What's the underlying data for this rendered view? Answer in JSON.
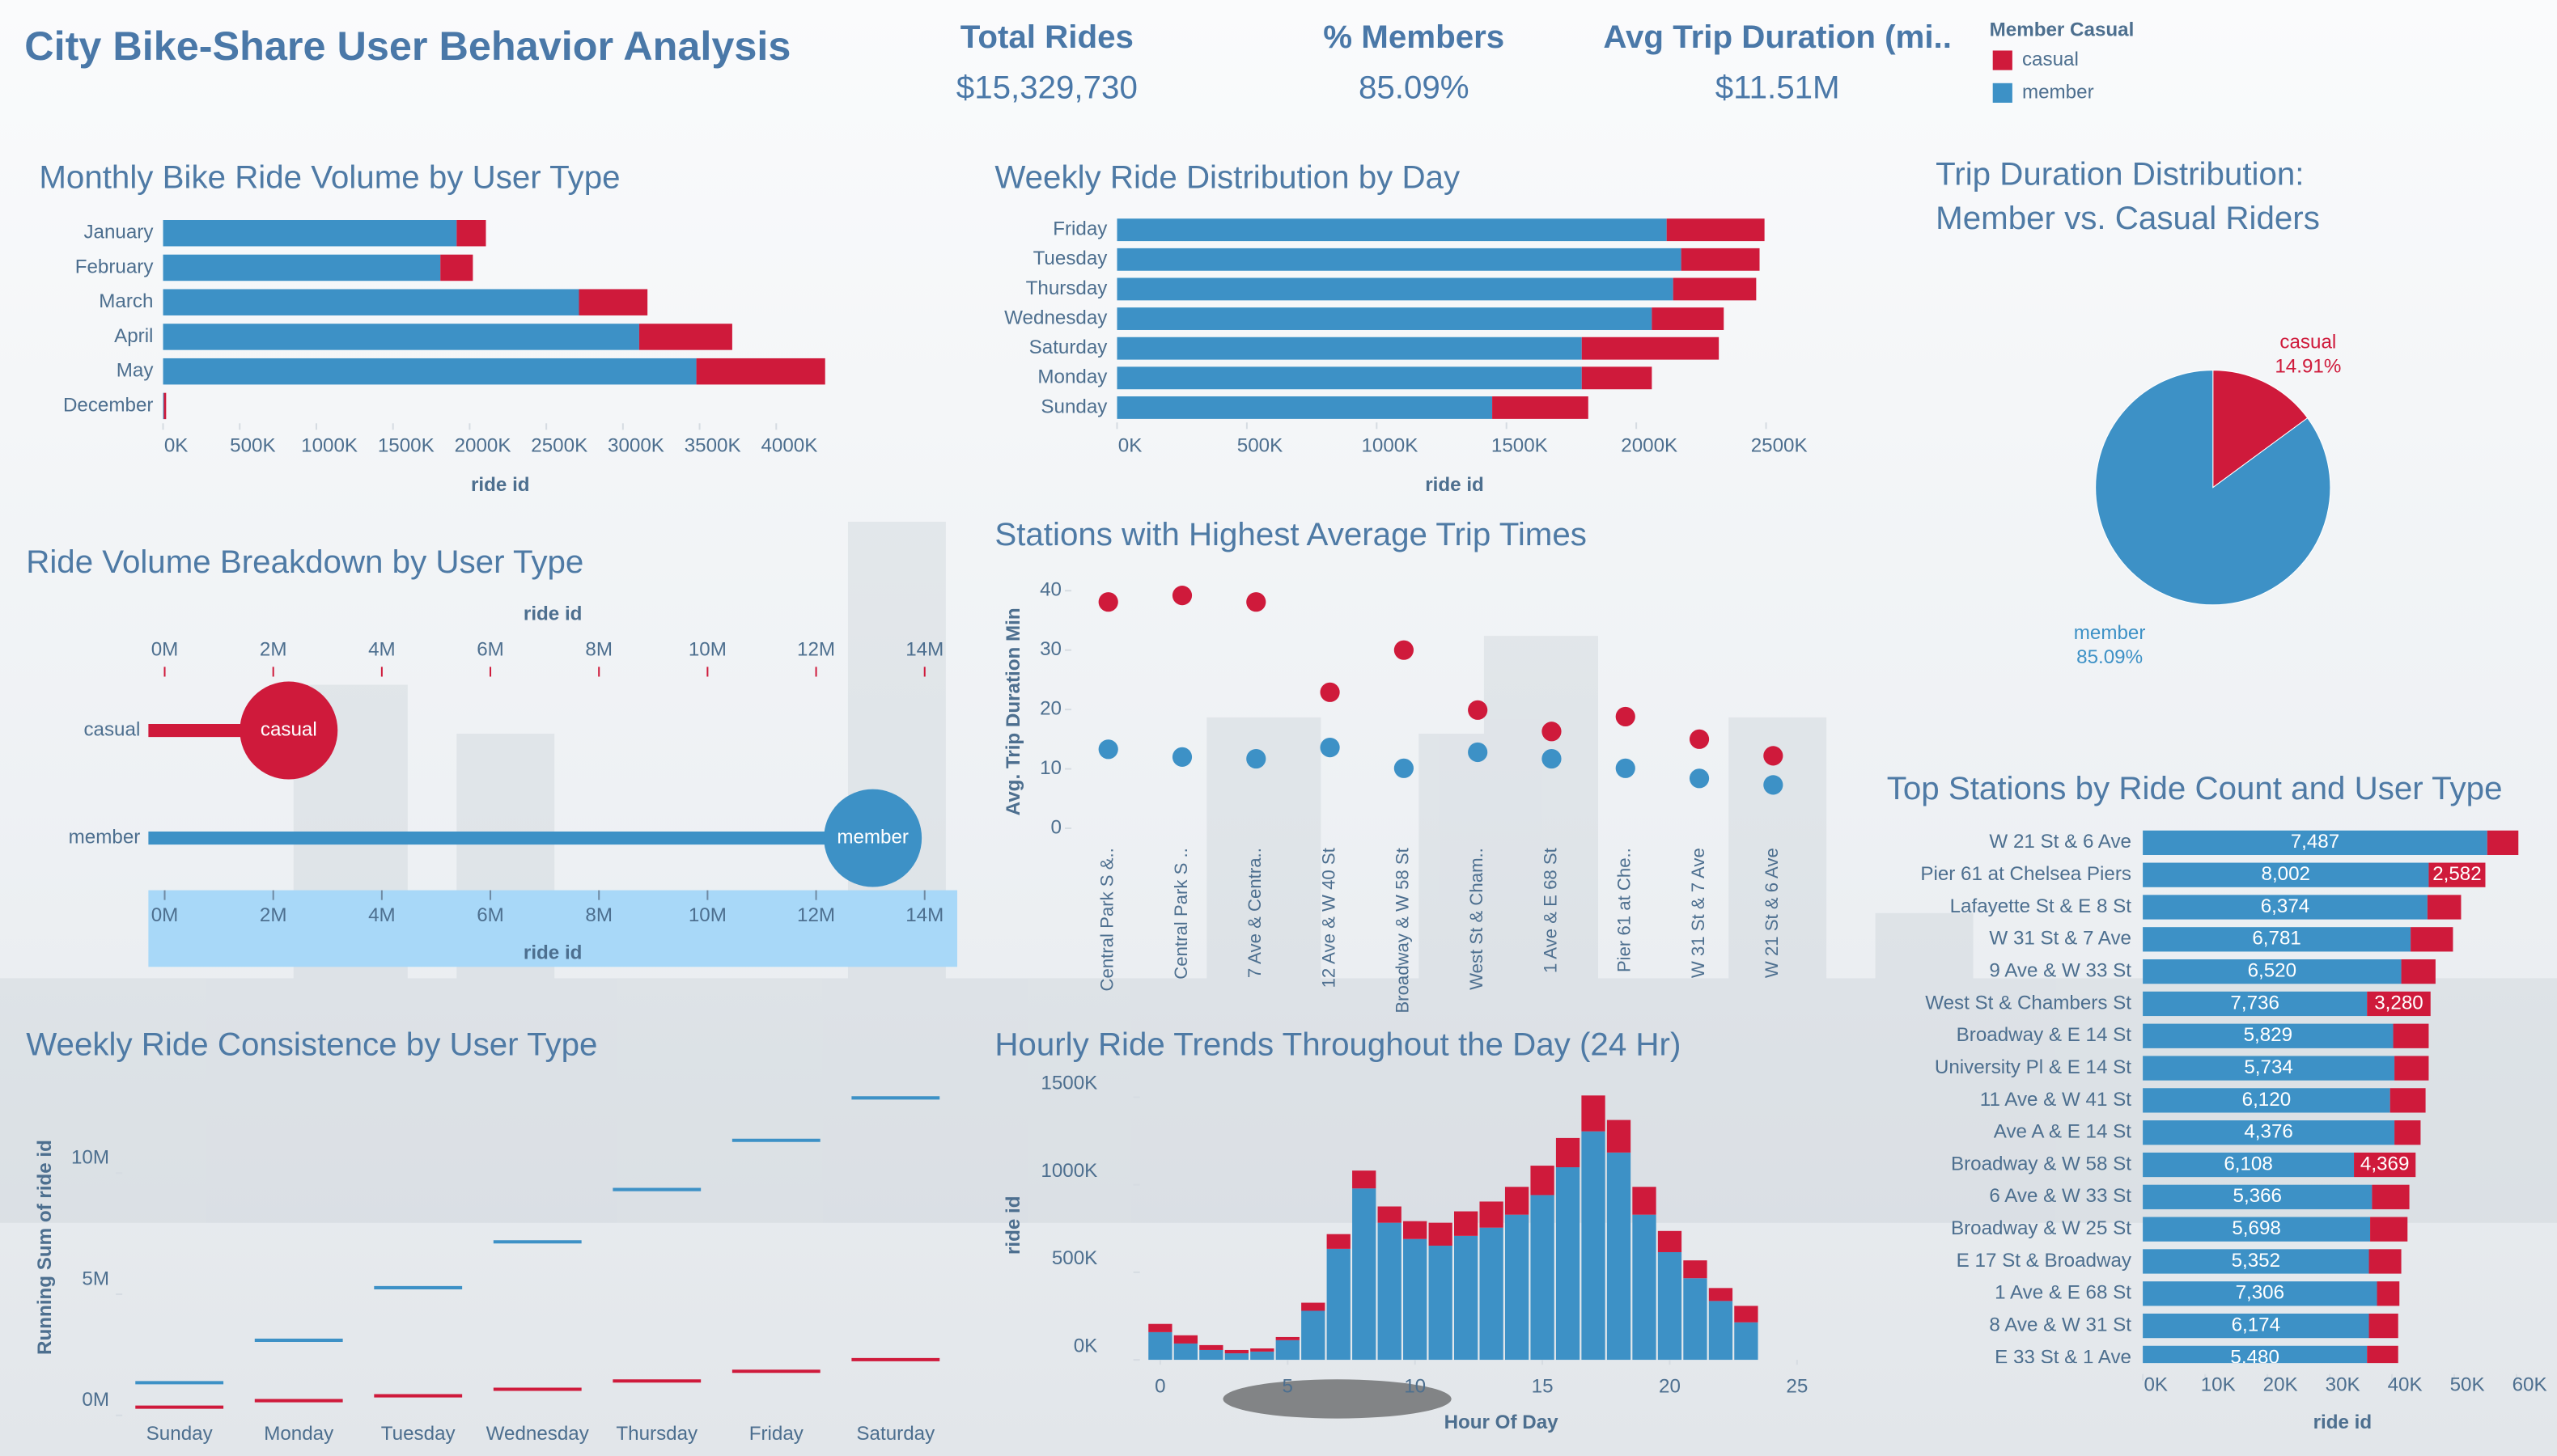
{
  "header": {
    "title": "City Bike-Share User Behavior Analysis",
    "kpis": [
      {
        "label": "Total Rides",
        "value": "$15,329,730"
      },
      {
        "label": "% Members",
        "value": "85.09%"
      },
      {
        "label": "Avg Trip Duration (mi..",
        "value": "$11.51M"
      }
    ],
    "legend_title": "Member Casual"
  },
  "chart_data": [
    {
      "type": "bar",
      "orientation": "horizontal",
      "title": "Monthly Bike Ride Volume by User Type",
      "categories": [
        "January",
        "February",
        "March",
        "April",
        "May",
        "December"
      ],
      "series": [
        {
          "name": "member",
          "color": "#3d91c6",
          "values": [
            1915000,
            1809000,
            2713000,
            3106000,
            3479000,
            5000
          ]
        },
        {
          "name": "casual",
          "color": "#cf1a3b",
          "values": [
            191000,
            212000,
            447000,
            607000,
            840000,
            15000
          ]
        }
      ],
      "xlim": [
        0,
        4400000
      ],
      "xticks": [
        {
          "value": 0,
          "label": "0K"
        },
        {
          "value": 500000,
          "label": "500K"
        },
        {
          "value": 1000000,
          "label": "1000K"
        },
        {
          "value": 1500000,
          "label": "1500K"
        },
        {
          "value": 2000000,
          "label": "2000K"
        },
        {
          "value": 2500000,
          "label": "2500K"
        },
        {
          "value": 3000000,
          "label": "3000K"
        },
        {
          "value": 3500000,
          "label": "3500K"
        },
        {
          "value": 4000000,
          "label": "4000K"
        }
      ],
      "x_label": "ride id"
    },
    {
      "type": "bar",
      "orientation": "horizontal",
      "title": "Weekly Ride Distribution by Day",
      "categories": [
        "Friday",
        "Tuesday",
        "Thursday",
        "Wednesday",
        "Saturday",
        "Monday",
        "Sunday"
      ],
      "series": [
        {
          "color": "#3d91c6",
          "values": [
            2117000,
            2173000,
            2142000,
            2060000,
            1790000,
            1790000,
            1445000
          ]
        },
        {
          "color": "#cf1a3b",
          "values": [
            377000,
            302000,
            320000,
            277000,
            528000,
            270000,
            370000
          ]
        }
      ],
      "xlim": [
        0,
        2600000
      ],
      "xticks": [
        {
          "value": 0,
          "label": "0K"
        },
        {
          "value": 500000,
          "label": "500K"
        },
        {
          "value": 1000000,
          "label": "1000K"
        },
        {
          "value": 1500000,
          "label": "1500K"
        },
        {
          "value": 2000000,
          "label": "2000K"
        },
        {
          "value": 2500000,
          "label": "2500K"
        }
      ],
      "x_label": "ride id"
    },
    {
      "type": "pie",
      "title": "Trip Duration Distribution: Member vs. Casual Riders",
      "categories": [
        "casual",
        "member"
      ],
      "values": [
        14.91,
        85.09
      ],
      "value_labels": [
        "14.91%",
        "85.09%"
      ],
      "colors": [
        "#cf1a3b",
        "#3d91c6"
      ]
    },
    {
      "type": "lollipop",
      "title": "Ride Volume Breakdown by User Type",
      "categories": [
        "casual",
        "member"
      ],
      "values": [
        2285000,
        13045000
      ],
      "colors": [
        "#cf1a3b",
        "#3d91c6"
      ],
      "xlim": [
        -300000,
        14600000
      ],
      "xticks": [
        {
          "value": 0,
          "label": "0M"
        },
        {
          "value": 2000000,
          "label": "2M"
        },
        {
          "value": 4000000,
          "label": "4M"
        },
        {
          "value": 6000000,
          "label": "6M"
        },
        {
          "value": 8000000,
          "label": "8M"
        },
        {
          "value": 10000000,
          "label": "10M"
        },
        {
          "value": 12000000,
          "label": "12M"
        },
        {
          "value": 14000000,
          "label": "14M"
        }
      ],
      "x_label": "ride id"
    },
    {
      "type": "scatter",
      "title": "Stations with Highest Average Trip Times",
      "categories": [
        "Central Park S &..",
        "Central Park S ..",
        "7 Ave & Centra..",
        "12 Ave & W 40 St",
        "Broadway & W 58 St",
        "West St & Cham..",
        "1 Ave & E 68 St",
        "Pier 61 at Che..",
        "W 31 St & 7 Ave",
        "W 21 St & 6 Ave"
      ],
      "series": [
        {
          "color": "#cf1a3b",
          "values": [
            38.1,
            39.2,
            38.1,
            22.9,
            30,
            19.9,
            16.3,
            18.8,
            15,
            12.2
          ]
        },
        {
          "color": "#3d91c6",
          "values": [
            13.3,
            12,
            11.7,
            13.6,
            10.1,
            12.8,
            11.7,
            10.1,
            8.4,
            7.3
          ]
        }
      ],
      "ylim": [
        0,
        42
      ],
      "yticks": [
        0,
        10,
        20,
        30,
        40
      ],
      "y_label": "Avg. Trip Duration Min"
    },
    {
      "type": "dash",
      "title": "Weekly Ride Consistence by User Type",
      "categories": [
        "Sunday",
        "Monday",
        "Tuesday",
        "Wednesday",
        "Thursday",
        "Friday",
        "Saturday"
      ],
      "series": [
        {
          "color": "#3d91c6",
          "values": [
            1350000,
            3100000,
            5270000,
            7160000,
            9320000,
            11350000,
            13100000
          ]
        },
        {
          "color": "#cf1a3b",
          "values": [
            340000,
            610000,
            810000,
            1080000,
            1420000,
            1820000,
            2300000
          ]
        }
      ],
      "ylim": [
        -800000,
        14000000
      ],
      "yticks": [
        {
          "value": 0,
          "label": "0M"
        },
        {
          "value": 5000000,
          "label": "5M"
        },
        {
          "value": 10000000,
          "label": "10M"
        }
      ],
      "y_label": "Running Sum of ride id"
    },
    {
      "type": "bar",
      "orientation": "vertical",
      "title": "Hourly Ride Trends Throughout the Day (24 Hr)",
      "x": [
        0,
        1,
        2,
        3,
        4,
        5,
        6,
        7,
        8,
        9,
        10,
        11,
        12,
        13,
        14,
        15,
        16,
        17,
        18,
        19,
        20,
        21,
        22,
        23
      ],
      "series": [
        {
          "color": "#3d91c6",
          "values": [
            158000,
            93000,
            56000,
            37000,
            47000,
            112000,
            280000,
            634000,
            979000,
            783000,
            690000,
            652000,
            708000,
            755000,
            829000,
            941000,
            1100000,
            1305000,
            1184000,
            829000,
            615000,
            466000,
            336000,
            214000
          ]
        },
        {
          "color": "#cf1a3b",
          "values": [
            47000,
            47000,
            28000,
            19000,
            18000,
            18000,
            46000,
            84000,
            102000,
            93000,
            102000,
            131000,
            140000,
            149000,
            159000,
            168000,
            167000,
            205000,
            186000,
            159000,
            121000,
            102000,
            74000,
            94000
          ]
        }
      ],
      "xlim": [
        -0.8,
        25
      ],
      "xticks": [
        0,
        5,
        10,
        15,
        20,
        25
      ],
      "ylim": [
        0,
        1630000
      ],
      "yticks": [
        {
          "value": 0,
          "label": "0K"
        },
        {
          "value": 500000,
          "label": "500K"
        },
        {
          "value": 1000000,
          "label": "1000K"
        },
        {
          "value": 1500000,
          "label": "1500K"
        }
      ],
      "x_label": "Hour Of Day",
      "y_label": "ride id"
    },
    {
      "type": "bar",
      "orientation": "horizontal",
      "title": "Top Stations by Ride Count and User Type",
      "categories": [
        "W 21 St & 6 Ave",
        "Pier 61 at Chelsea Piers",
        "Lafayette St & E 8 St",
        "W 31 St & 7 Ave",
        "9 Ave & W 33 St",
        "West St & Chambers St",
        "Broadway & E 14 St",
        "University Pl & E 14 St",
        "11 Ave & W 41 St",
        "Ave A & E 14 St",
        "Broadway & W 58 St",
        "6 Ave & W 33 St",
        "Broadway & W 25 St",
        "E 17 St & Broadway",
        "1 Ave & E 68 St",
        "8 Ave & W 31 St",
        "E 33 St & 1 Ave"
      ],
      "series": [
        {
          "color": "#3d91c6",
          "values": [
            55300,
            45900,
            45700,
            43000,
            41500,
            36000,
            40200,
            40400,
            39700,
            40400,
            33900,
            36800,
            36500,
            36300,
            37600,
            36300,
            36000
          ],
          "labels": [
            "7,487",
            "8,002",
            "6,374",
            "6,781",
            "6,520",
            "7,736",
            "5,829",
            "5,734",
            "6,120",
            "4,376",
            "6,108",
            "5,366",
            "5,698",
            "5,352",
            "7,306",
            "6,174",
            "5,480"
          ]
        },
        {
          "color": "#cf1a3b",
          "values": [
            5000,
            9100,
            5400,
            6800,
            5500,
            10200,
            5700,
            5500,
            5700,
            4200,
            9900,
            6000,
            6000,
            5200,
            3600,
            4700,
            5000
          ],
          "labels": [
            null,
            "2,582",
            null,
            null,
            null,
            "3,280",
            null,
            null,
            null,
            null,
            "4,369",
            null,
            null,
            null,
            null,
            null,
            null
          ]
        }
      ],
      "xlim": [
        0,
        61500
      ],
      "xticks": [
        {
          "value": 0,
          "label": "0K"
        },
        {
          "value": 10000,
          "label": "10K"
        },
        {
          "value": 20000,
          "label": "20K"
        },
        {
          "value": 30000,
          "label": "30K"
        },
        {
          "value": 40000,
          "label": "40K"
        },
        {
          "value": 50000,
          "label": "50K"
        },
        {
          "value": 60000,
          "label": "60K"
        }
      ],
      "x_label": "ride id"
    }
  ]
}
